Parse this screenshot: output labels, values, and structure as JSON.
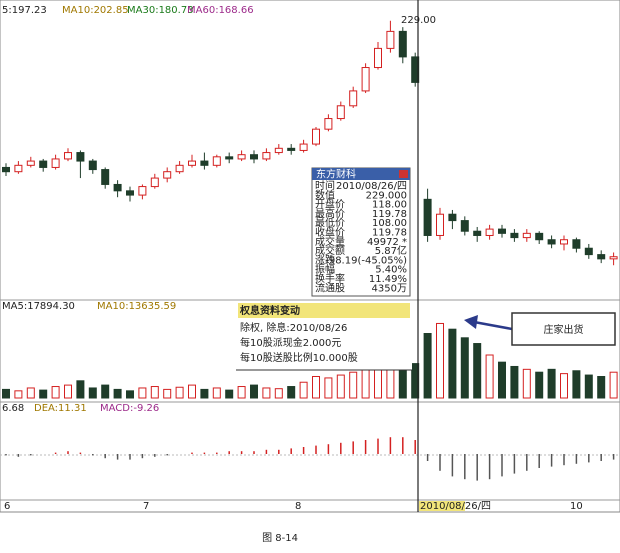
{
  "chart_data": [
    {
      "type": "candlestick",
      "legend": [
        "5:197.23",
        "MA10:202.85",
        "MA30:180.73",
        "MA60:168.66"
      ],
      "legend_colors": [
        "#222222",
        "#a07800",
        "#1a7a1a",
        "#9c2a8a"
      ],
      "annotation": "229.00",
      "up_color": "#d42020",
      "down_color": "#1f3d2a",
      "ylim": [
        100,
        235
      ],
      "open": [
        160,
        158,
        161,
        163,
        160,
        164,
        167,
        163,
        159,
        152,
        149,
        147,
        151,
        155,
        158,
        161,
        163,
        161,
        165,
        164,
        166,
        164,
        167,
        169,
        168,
        171,
        178,
        183,
        189,
        196,
        207,
        216,
        224,
        212,
        145,
        128,
        138,
        135,
        130,
        128,
        131,
        129,
        127,
        129,
        126,
        124,
        126,
        122,
        119,
        117
      ],
      "close": [
        158,
        161,
        163,
        160,
        164,
        167,
        163,
        159,
        152,
        149,
        147,
        151,
        155,
        158,
        161,
        163,
        161,
        165,
        164,
        166,
        164,
        167,
        169,
        168,
        171,
        178,
        183,
        189,
        196,
        207,
        216,
        224,
        212,
        200,
        128,
        138,
        135,
        130,
        128,
        131,
        129,
        127,
        129,
        126,
        124,
        126,
        122,
        119,
        117,
        118
      ],
      "high": [
        162,
        163,
        165,
        164,
        166,
        169,
        168,
        164,
        160,
        154,
        151,
        152,
        157,
        160,
        163,
        166,
        167,
        166,
        167,
        168,
        168,
        169,
        171,
        171,
        173,
        179,
        185,
        191,
        198,
        209,
        219,
        229,
        226,
        214,
        150,
        141,
        140,
        137,
        132,
        133,
        133,
        131,
        131,
        130,
        128,
        128,
        127,
        124,
        121,
        120
      ],
      "low": [
        156,
        157,
        160,
        158,
        159,
        163,
        155,
        157,
        150,
        146,
        144,
        145,
        150,
        153,
        157,
        160,
        159,
        160,
        162,
        163,
        162,
        163,
        166,
        166,
        167,
        170,
        177,
        182,
        188,
        195,
        206,
        214,
        209,
        198,
        125,
        126,
        131,
        128,
        125,
        126,
        127,
        125,
        125,
        124,
        122,
        121,
        120,
        117,
        115,
        114
      ]
    },
    {
      "type": "bar",
      "legend": [
        "MA5:17894.30",
        "MA10:13635.59"
      ],
      "legend_colors": [
        "#222222",
        "#a07800"
      ],
      "ylim": [
        0,
        60000
      ],
      "values": [
        6000,
        5000,
        7000,
        5500,
        8000,
        9000,
        12000,
        7000,
        9000,
        6000,
        5000,
        7000,
        8000,
        6000,
        7500,
        9000,
        6000,
        7000,
        5500,
        8000,
        9000,
        7000,
        6500,
        8000,
        11000,
        15000,
        14000,
        16000,
        18000,
        22000,
        25000,
        30000,
        26000,
        24000,
        45000,
        52000,
        48000,
        42000,
        38000,
        30000,
        25000,
        22000,
        20000,
        18000,
        20000,
        17000,
        19000,
        16000,
        15000,
        18000
      ]
    },
    {
      "type": "bar",
      "legend": [
        "6.68",
        "DEA:11.31",
        "MACD:-9.26"
      ],
      "legend_colors": [
        "#222222",
        "#a07800",
        "#9c2a8a"
      ],
      "ylim": [
        -30,
        30
      ],
      "values": [
        -1,
        -2,
        -1,
        0,
        1,
        2,
        1,
        -1,
        -3,
        -4,
        -4,
        -3,
        -2,
        -1,
        0,
        1,
        1,
        1,
        2,
        2,
        2,
        3,
        3,
        4,
        5,
        6,
        7,
        8,
        9,
        10,
        11,
        12,
        12,
        10,
        -5,
        -12,
        -16,
        -18,
        -19,
        -18,
        -16,
        -14,
        -12,
        -10,
        -9,
        -8,
        -7,
        -6,
        -5,
        -4
      ]
    }
  ],
  "popup": {
    "title": "东方财科",
    "rows": [
      [
        "时间",
        "2010/08/26/四"
      ],
      [
        "数值",
        "229.000"
      ],
      [
        "开盘价",
        "118.00"
      ],
      [
        "最高价",
        "119.78"
      ],
      [
        "最低价",
        "108.00"
      ],
      [
        "收盘价",
        "119.78"
      ],
      [
        "成交量",
        "49972 *"
      ],
      [
        "成交额",
        "5.87亿"
      ],
      [
        "涨跌",
        "-98.19(-45.05%)"
      ],
      [
        "振幅",
        "5.40%"
      ],
      [
        "换手率",
        "11.49%"
      ],
      [
        "流通股",
        "4350万"
      ]
    ]
  },
  "note": {
    "title": "权息资料变动",
    "lines": [
      "除权, 除息:2010/08/26",
      "每10股派现金2.000元",
      "每10股送股比例10.000股"
    ]
  },
  "callout": "庄家出货",
  "x_labels": [
    "6",
    "7",
    "8",
    "2010/08/26/四",
    "10"
  ],
  "caption": "图 8-14"
}
